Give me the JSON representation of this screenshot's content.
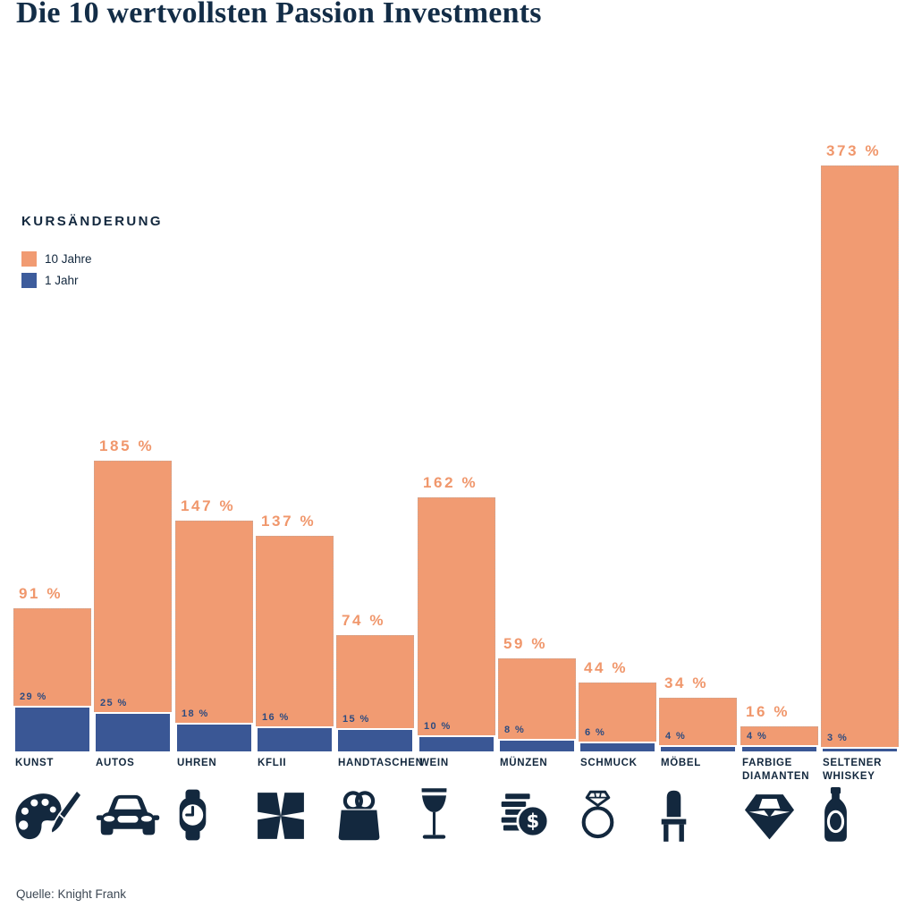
{
  "title": "Die 10 wertvollsten Passion Investments",
  "legend": {
    "heading": "KURSÄNDERUNG",
    "items": [
      {
        "label": "10 Jahre",
        "color": "#F19B72"
      },
      {
        "label": "1 Jahr",
        "color": "#3D5C9C"
      }
    ]
  },
  "source": "Quelle: Knight Frank",
  "colors": {
    "bar_10_jahre": "#F19B72",
    "bar_1_jahr": "#3A5795",
    "value_label_10_jahre": "#F0976C",
    "value_label_1_jahr": "#2C4B80",
    "text_navy": "#13283E",
    "background": "#FFFFFF"
  },
  "chart_data": {
    "type": "bar",
    "title": "Die 10 wertvollsten Passion Investments",
    "unit": "%",
    "value_label_format": "{v} %",
    "categories": [
      "KUNST",
      "AUTOS",
      "UHREN",
      "KFLII",
      "HANDTASCHEN",
      "WEIN",
      "MÜNZEN",
      "SCHMUCK",
      "MÖBEL",
      "FARBIGE DIAMANTEN",
      "SELTENER WHISKEY"
    ],
    "icons": [
      "palette-icon",
      "car-icon",
      "watch-icon",
      "kflii-pattern-icon",
      "handbag-icon",
      "wine-glass-icon",
      "coins-icon",
      "ring-icon",
      "chair-icon",
      "diamond-icon",
      "whiskey-bottle-icon"
    ],
    "series": [
      {
        "name": "10 Jahre",
        "color": "#F19B72",
        "values": [
          91,
          185,
          147,
          137,
          74,
          162,
          59,
          44,
          34,
          16,
          373
        ]
      },
      {
        "name": "1 Jahr",
        "color": "#3A5795",
        "values": [
          29,
          25,
          18,
          16,
          15,
          10,
          8,
          6,
          4,
          4,
          3
        ]
      }
    ],
    "ylim": [
      0,
      373
    ],
    "grid": false,
    "legend_position": "upper-left",
    "bar_labels": "above"
  }
}
